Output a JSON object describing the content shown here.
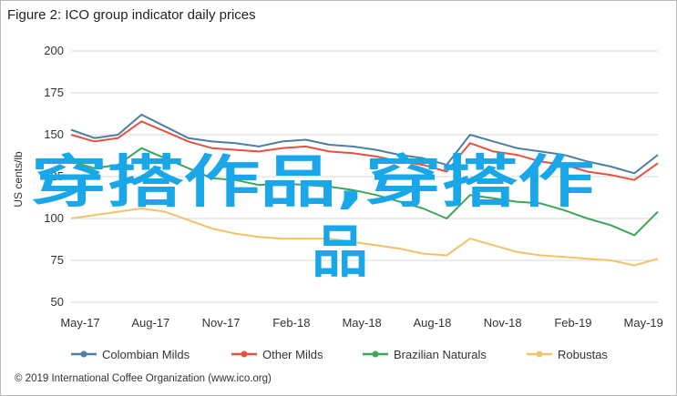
{
  "title": "Figure 2: ICO group indicator daily prices",
  "credit": "© 2019 International Coffee Organization (www.ico.org)",
  "watermark": [
    "穿搭作品,穿搭作",
    "品"
  ],
  "colors": {
    "Colombian Milds": "#4d7ea3",
    "Other Milds": "#e8513f",
    "Brazilian Naturals": "#3aa65a",
    "Robustas": "#f2c26b",
    "grid": "#d9d9d9",
    "watermark": "#1aa7ea"
  },
  "chart_data": {
    "type": "line",
    "title": "Figure 2: ICO group indicator daily prices",
    "xlabel": "",
    "ylabel": "US cents/lb",
    "ylim": [
      50,
      200
    ],
    "yticks": [
      50,
      75,
      100,
      125,
      150,
      175,
      200
    ],
    "xticks": [
      "May-17",
      "Aug-17",
      "Nov-17",
      "Feb-18",
      "May-18",
      "Aug-18",
      "Nov-18",
      "Feb-19",
      "May-19"
    ],
    "xrange": [
      "2017-05",
      "2019-06"
    ],
    "grid": "horizontal",
    "legend": "bottom",
    "x": [
      "2017-05",
      "2017-06",
      "2017-07",
      "2017-08",
      "2017-09",
      "2017-10",
      "2017-11",
      "2017-12",
      "2018-01",
      "2018-02",
      "2018-03",
      "2018-04",
      "2018-05",
      "2018-06",
      "2018-07",
      "2018-08",
      "2018-09",
      "2018-10",
      "2018-11",
      "2018-12",
      "2019-01",
      "2019-02",
      "2019-03",
      "2019-04",
      "2019-05",
      "2019-06"
    ],
    "series": [
      {
        "name": "Colombian Milds",
        "values": [
          153,
          148,
          150,
          162,
          155,
          148,
          146,
          145,
          143,
          146,
          147,
          144,
          143,
          141,
          138,
          136,
          132,
          150,
          146,
          142,
          140,
          138,
          134,
          131,
          127,
          138
        ]
      },
      {
        "name": "Other Milds",
        "values": [
          150,
          146,
          148,
          158,
          152,
          146,
          142,
          141,
          140,
          142,
          143,
          140,
          139,
          137,
          134,
          132,
          128,
          145,
          140,
          138,
          134,
          132,
          128,
          126,
          123,
          133
        ]
      },
      {
        "name": "Brazilian Naturals",
        "values": [
          134,
          130,
          132,
          142,
          136,
          130,
          124,
          123,
          120,
          121,
          120,
          119,
          117,
          114,
          110,
          106,
          100,
          114,
          112,
          110,
          109,
          105,
          100,
          96,
          90,
          104
        ]
      },
      {
        "name": "Robustas",
        "values": [
          100,
          102,
          104,
          106,
          104,
          99,
          94,
          91,
          89,
          88,
          88,
          88,
          86,
          84,
          82,
          79,
          78,
          88,
          84,
          80,
          78,
          77,
          76,
          75,
          72,
          76
        ]
      }
    ]
  }
}
